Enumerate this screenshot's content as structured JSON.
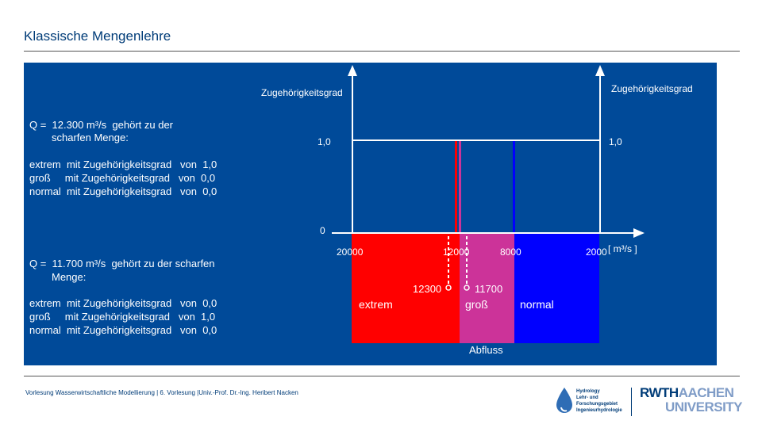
{
  "slide": {
    "title": "Klassische Mengenlehre",
    "footer": "Vorlesung Wasserwirtschaftliche Modellierung | 6. Vorlesung |Univ.-Prof. Dr.-Ing. Heribert Nacken"
  },
  "left": {
    "q1_line1": "Q =  12.300 m³/s  gehört zu der",
    "q1_line2": "scharfen Menge:",
    "q1_rows": [
      "extrem  mit Zugehörigkeitsgrad   von  1,0",
      "groß     mit Zugehörigkeitsgrad   von  0,0",
      "normal  mit Zugehörigkeitsgrad   von  0,0"
    ],
    "q2_line1": "Q =  11.700 m³/s  gehört zu der scharfen",
    "q2_line2": "Menge:",
    "q2_rows": [
      "extrem  mit Zugehörigkeitsgrad   von  0,0",
      "groß     mit Zugehörigkeitsgrad   von  1,0",
      "normal  mit Zugehörigkeitsgrad   von  0,0"
    ]
  },
  "diagram": {
    "y_label_left": "Zugehörigkeitsgrad",
    "y_label_right": "Zugehörigkeitsgrad",
    "one_left": "1,0",
    "one_right": "1,0",
    "zero": "0",
    "tick_20000": "20000",
    "tick_12000": "12000",
    "tick_8000": "8000",
    "tick_2000": "2000",
    "unit": "[ m³/s ]",
    "marker_12300": "12300",
    "marker_11700": "11700",
    "set_extrem": "extrem",
    "set_gross": "groß",
    "set_normal": "normal",
    "x_label": "Abfluss",
    "colors": {
      "extrem": "#ff0000",
      "gross": "#cc3399",
      "normal": "#0000ff",
      "panel": "#004a99"
    }
  },
  "logos": {
    "hydrology_line1": "Hydrology",
    "hydrology_line2": "Lehr- und",
    "hydrology_line3": "Forschungsgebiet",
    "hydrology_line4": "Ingenieurhydrologie",
    "rwth_line1_a": "RWTH",
    "rwth_line1_b": "AACHEN",
    "rwth_line2": "UNIVERSITY"
  }
}
